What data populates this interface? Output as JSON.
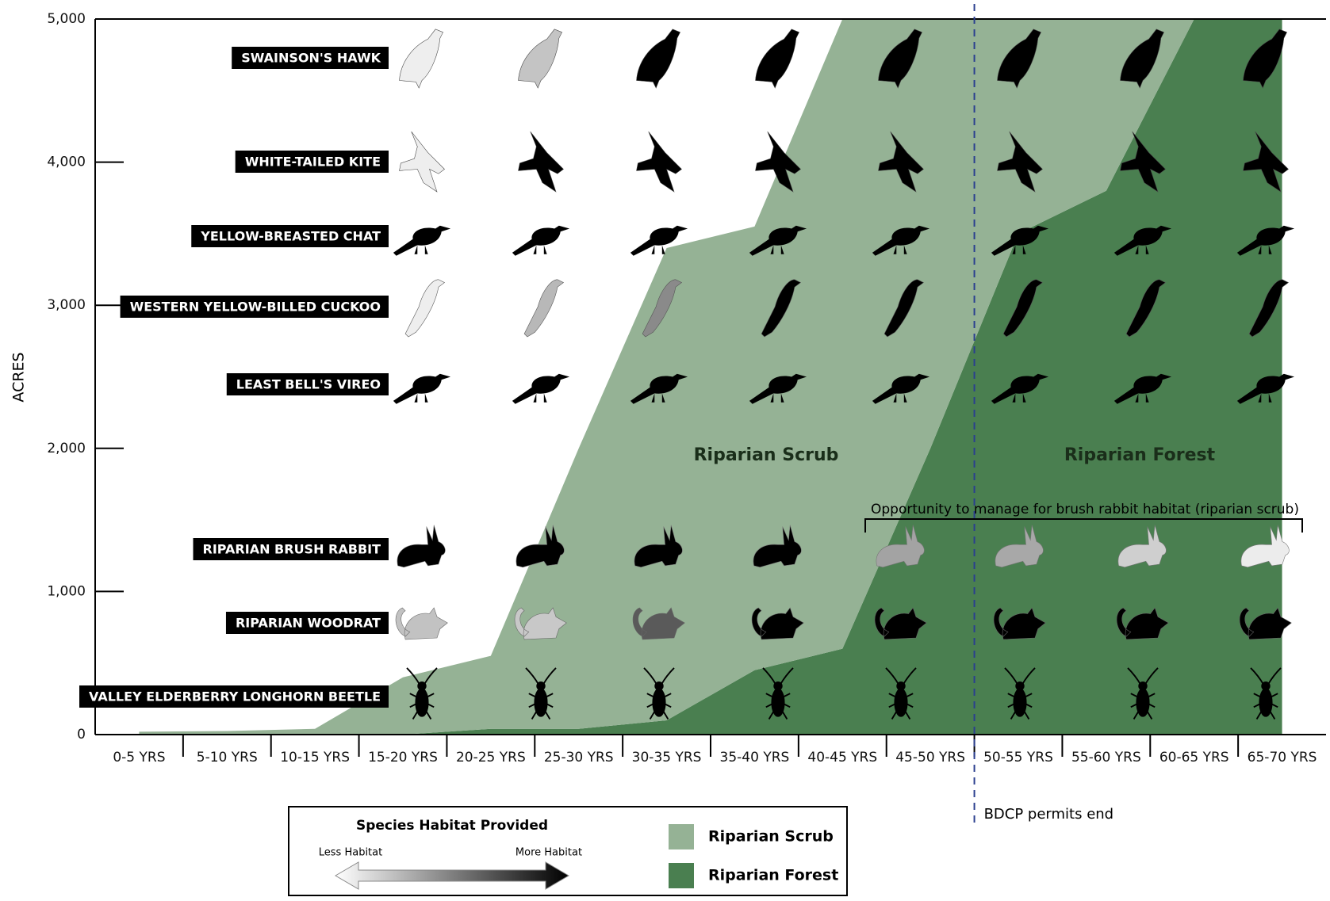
{
  "chart_data": {
    "type": "stacked-area",
    "y_label": "ACRES",
    "categories": [
      "0-5 YRS",
      "5-10 YRS",
      "10-15 YRS",
      "15-20 YRS",
      "20-25 YRS",
      "25-30 YRS",
      "30-35 YRS",
      "35-40 YRS",
      "40-45 YRS",
      "45-50 YRS",
      "50-55 YRS",
      "55-60 YRS",
      "60-65 YRS",
      "65-70 YRS"
    ],
    "series": [
      {
        "name": "Riparian Forest",
        "color": "#4a7f50",
        "values": [
          0,
          0,
          0,
          0,
          40,
          40,
          100,
          450,
          600,
          2000,
          3500,
          3800,
          5000,
          5000
        ]
      },
      {
        "name": "Riparian Scrub",
        "color": "#95b295",
        "values": [
          20,
          25,
          40,
          400,
          510,
          1960,
          3300,
          3100,
          4400,
          3000,
          1500,
          1200,
          0,
          0
        ]
      }
    ],
    "ylim": [
      0,
      5000
    ],
    "yticks": [
      0,
      {
        "value": 1000,
        "label": "1,000"
      },
      {
        "value": 2000,
        "label": "2,000"
      },
      {
        "value": 3000,
        "label": "3,000"
      },
      {
        "value": 4000,
        "label": "4,000"
      },
      {
        "value": 5000,
        "label": "5,000"
      }
    ],
    "area_labels": [
      "Riparian Scrub",
      "Riparian Forest"
    ],
    "annotation": "Opportunity to manage for brush rabbit habitat (riparian scrub)",
    "permits_end": "BDCP permits end",
    "species": [
      {
        "name": "SWAINSON'S HAWK",
        "colors": [
          "#eeeeee",
          "#c4c4c4",
          "#000",
          "#000",
          "#000",
          "#000",
          "#000",
          "#000"
        ]
      },
      {
        "name": "WHITE-TAILED KITE",
        "colors": [
          "#eeeeee",
          "#000",
          "#000",
          "#000",
          "#000",
          "#000",
          "#000",
          "#000"
        ]
      },
      {
        "name": "YELLOW-BREASTED CHAT",
        "colors": [
          "#000",
          "#000",
          "#000",
          "#000",
          "#000",
          "#000",
          "#000",
          "#000"
        ]
      },
      {
        "name": "WESTERN YELLOW-BILLED CUCKOO",
        "colors": [
          "#eeeeee",
          "#b8b8b8",
          "#8a8a8a",
          "#000",
          "#000",
          "#000",
          "#000",
          "#000"
        ]
      },
      {
        "name": "LEAST BELL'S VIREO",
        "colors": [
          "#000",
          "#000",
          "#000",
          "#000",
          "#000",
          "#000",
          "#000",
          "#000"
        ]
      },
      {
        "name": "RIPARIAN BRUSH RABBIT",
        "colors": [
          "#000",
          "#000",
          "#000",
          "#000",
          "#a3a3a3",
          "#a8a8a8",
          "#cfcfcf",
          "#ececec"
        ]
      },
      {
        "name": "RIPARIAN WOODRAT",
        "colors": [
          "#c2c2c2",
          "#c8c8c8",
          "#5a5a5a",
          "#000",
          "#000",
          "#000",
          "#000",
          "#000"
        ]
      },
      {
        "name": "VALLEY ELDERBERRY LONGHORN BEETLE",
        "colors": [
          "#000",
          "#000",
          "#000",
          "#000",
          "#000",
          "#000",
          "#000",
          "#000"
        ]
      }
    ],
    "legend": {
      "title": "Species Habitat Provided",
      "less": "Less Habitat",
      "more": "More Habitat"
    }
  }
}
